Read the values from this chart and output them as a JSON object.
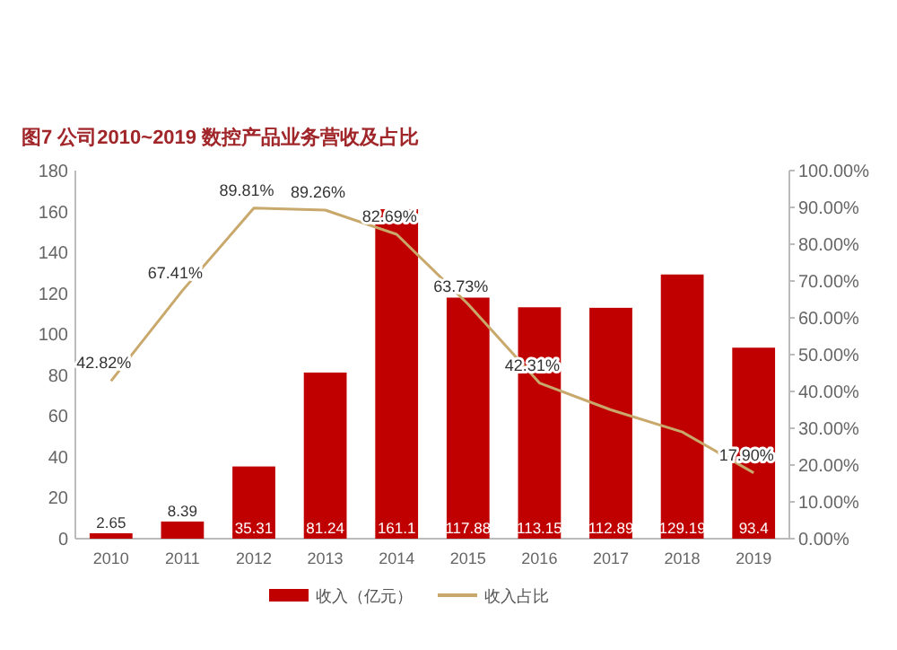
{
  "chart_data": {
    "type": "bar",
    "title": "图7 公司2010~2019 数控产品业务营收及占比",
    "categories": [
      "2010",
      "2011",
      "2012",
      "2013",
      "2014",
      "2015",
      "2016",
      "2017",
      "2018",
      "2019"
    ],
    "series": [
      {
        "name": "收入（亿元）",
        "color": "#c00000",
        "values": [
          2.65,
          8.39,
          35.31,
          81.24,
          161.1,
          117.88,
          113.15,
          112.89,
          129.19,
          93.4
        ],
        "value_labels": [
          "2.65",
          "8.39",
          "35.31",
          "81.24",
          "161.1",
          "117.88",
          "113.15",
          "112.89",
          "129.19",
          "93.4"
        ]
      },
      {
        "name": "收入占比",
        "type": "line",
        "axis": "y2",
        "color": "#c9a86c",
        "values": [
          42.82,
          67.41,
          89.81,
          89.26,
          82.69,
          63.73,
          42.31,
          35,
          29,
          17.9
        ],
        "value_labels": [
          "42.82%",
          "67.41%",
          "89.81%",
          "89.26%",
          "82.69%",
          "63.73%",
          "42.31%",
          null,
          null,
          "17.90%"
        ]
      }
    ],
    "ylim": [
      0,
      180
    ],
    "yticks": [
      0,
      20,
      40,
      60,
      80,
      100,
      120,
      140,
      160,
      180
    ],
    "y2lim": [
      0,
      100
    ],
    "y2ticks": [
      {
        "value": 0,
        "label": "0.00%"
      },
      {
        "value": 10,
        "label": "10.00%"
      },
      {
        "value": 20,
        "label": "20.00%"
      },
      {
        "value": 30,
        "label": "30.00%"
      },
      {
        "value": 40,
        "label": "40.00%"
      },
      {
        "value": 50,
        "label": "50.00%"
      },
      {
        "value": 60,
        "label": "60.00%"
      },
      {
        "value": 70,
        "label": "70.00%"
      },
      {
        "value": 80,
        "label": "80.00%"
      },
      {
        "value": 90,
        "label": "90.00%"
      },
      {
        "value": 100,
        "label": "100.00%"
      }
    ],
    "grid": false,
    "legend": "bottom"
  }
}
